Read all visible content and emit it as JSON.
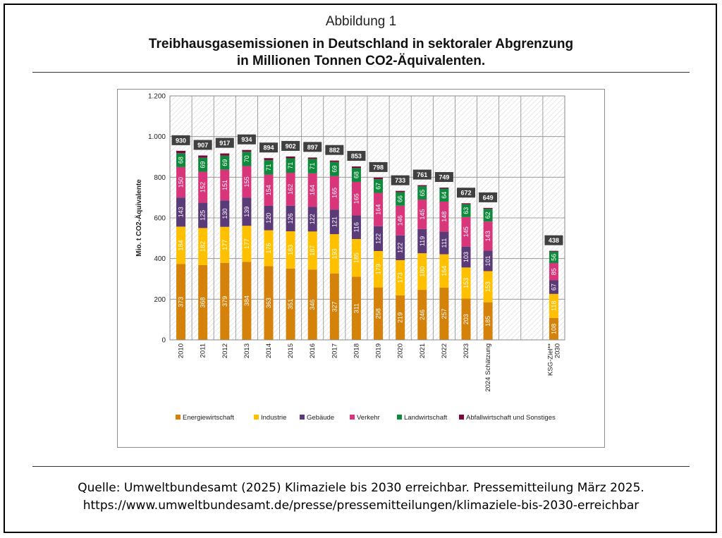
{
  "figure_label": "Abbildung 1",
  "title_line1": "Treibhausgasemissionen in Deutschland in sektoraler Abgrenzung",
  "title_line2": "in Millionen Tonnen CO2-Äquivalenten.",
  "source_line1": "Quelle: Umweltbundesamt (2025) Klimaziele bis 2030 erreichbar. Pressemitteilung März 2025.",
  "source_line2": "https://www.umweltbundesamt.de/presse/pressemitteilungen/klimaziele-bis-2030-erreichbar",
  "chart_data": {
    "type": "bar",
    "stacked": true,
    "title": "",
    "xlabel": "",
    "ylabel": "Mio. t CO2-Äquivalente",
    "ylim": [
      0,
      1200
    ],
    "yticks": [
      0,
      200,
      400,
      600,
      800,
      1000,
      1200
    ],
    "ytick_labels": [
      "0",
      "200",
      "400",
      "600",
      "800",
      "1.000",
      "1.200"
    ],
    "grid": true,
    "legend_position": "bottom",
    "categories": [
      "2010",
      "2011",
      "2012",
      "2013",
      "2014",
      "2015",
      "2016",
      "2017",
      "2018",
      "2019",
      "2020",
      "2021",
      "2022",
      "2023",
      "2024 Schätzung",
      "",
      "",
      "KSG-Ziel** 2030"
    ],
    "totals": [
      930,
      907,
      917,
      934,
      894,
      902,
      897,
      882,
      853,
      798,
      733,
      761,
      749,
      672,
      649,
      null,
      null,
      438
    ],
    "series": [
      {
        "name": "Energiewirtschaft",
        "color": "#D4820A",
        "values": [
          373,
          368,
          379,
          384,
          363,
          351,
          346,
          327,
          311,
          258,
          219,
          246,
          257,
          203,
          185,
          null,
          null,
          108
        ]
      },
      {
        "name": "Industrie",
        "color": "#FFC000",
        "values": [
          184,
          182,
          177,
          177,
          176,
          183,
          187,
          193,
          185,
          179,
          173,
          180,
          164,
          153,
          153,
          null,
          null,
          118
        ]
      },
      {
        "name": "Gebäude",
        "color": "#5B3A78",
        "values": [
          143,
          125,
          130,
          139,
          120,
          126,
          122,
          121,
          116,
          122,
          122,
          119,
          111,
          103,
          101,
          null,
          null,
          67
        ]
      },
      {
        "name": "Verkehr",
        "color": "#D9357A",
        "values": [
          150,
          152,
          151,
          155,
          154,
          162,
          164,
          165,
          165,
          164,
          146,
          145,
          148,
          145,
          143,
          null,
          null,
          85
        ]
      },
      {
        "name": "Landwirtschaft",
        "color": "#0E8A3C",
        "values": [
          68,
          69,
          69,
          70,
          71,
          71,
          71,
          69,
          68,
          67,
          66,
          65,
          64,
          63,
          62,
          null,
          null,
          56
        ]
      },
      {
        "name": "Abfallwirtschaft und Sonstiges",
        "color": "#7A0A3E",
        "values": [
          12,
          11,
          11,
          9,
          10,
          9,
          7,
          7,
          8,
          8,
          7,
          6,
          5,
          5,
          5,
          null,
          null,
          4
        ]
      }
    ],
    "data_labels_shown_for": [
      "Energiewirtschaft",
      "Industrie",
      "Gebäude",
      "Verkehr",
      "Landwirtschaft"
    ]
  }
}
